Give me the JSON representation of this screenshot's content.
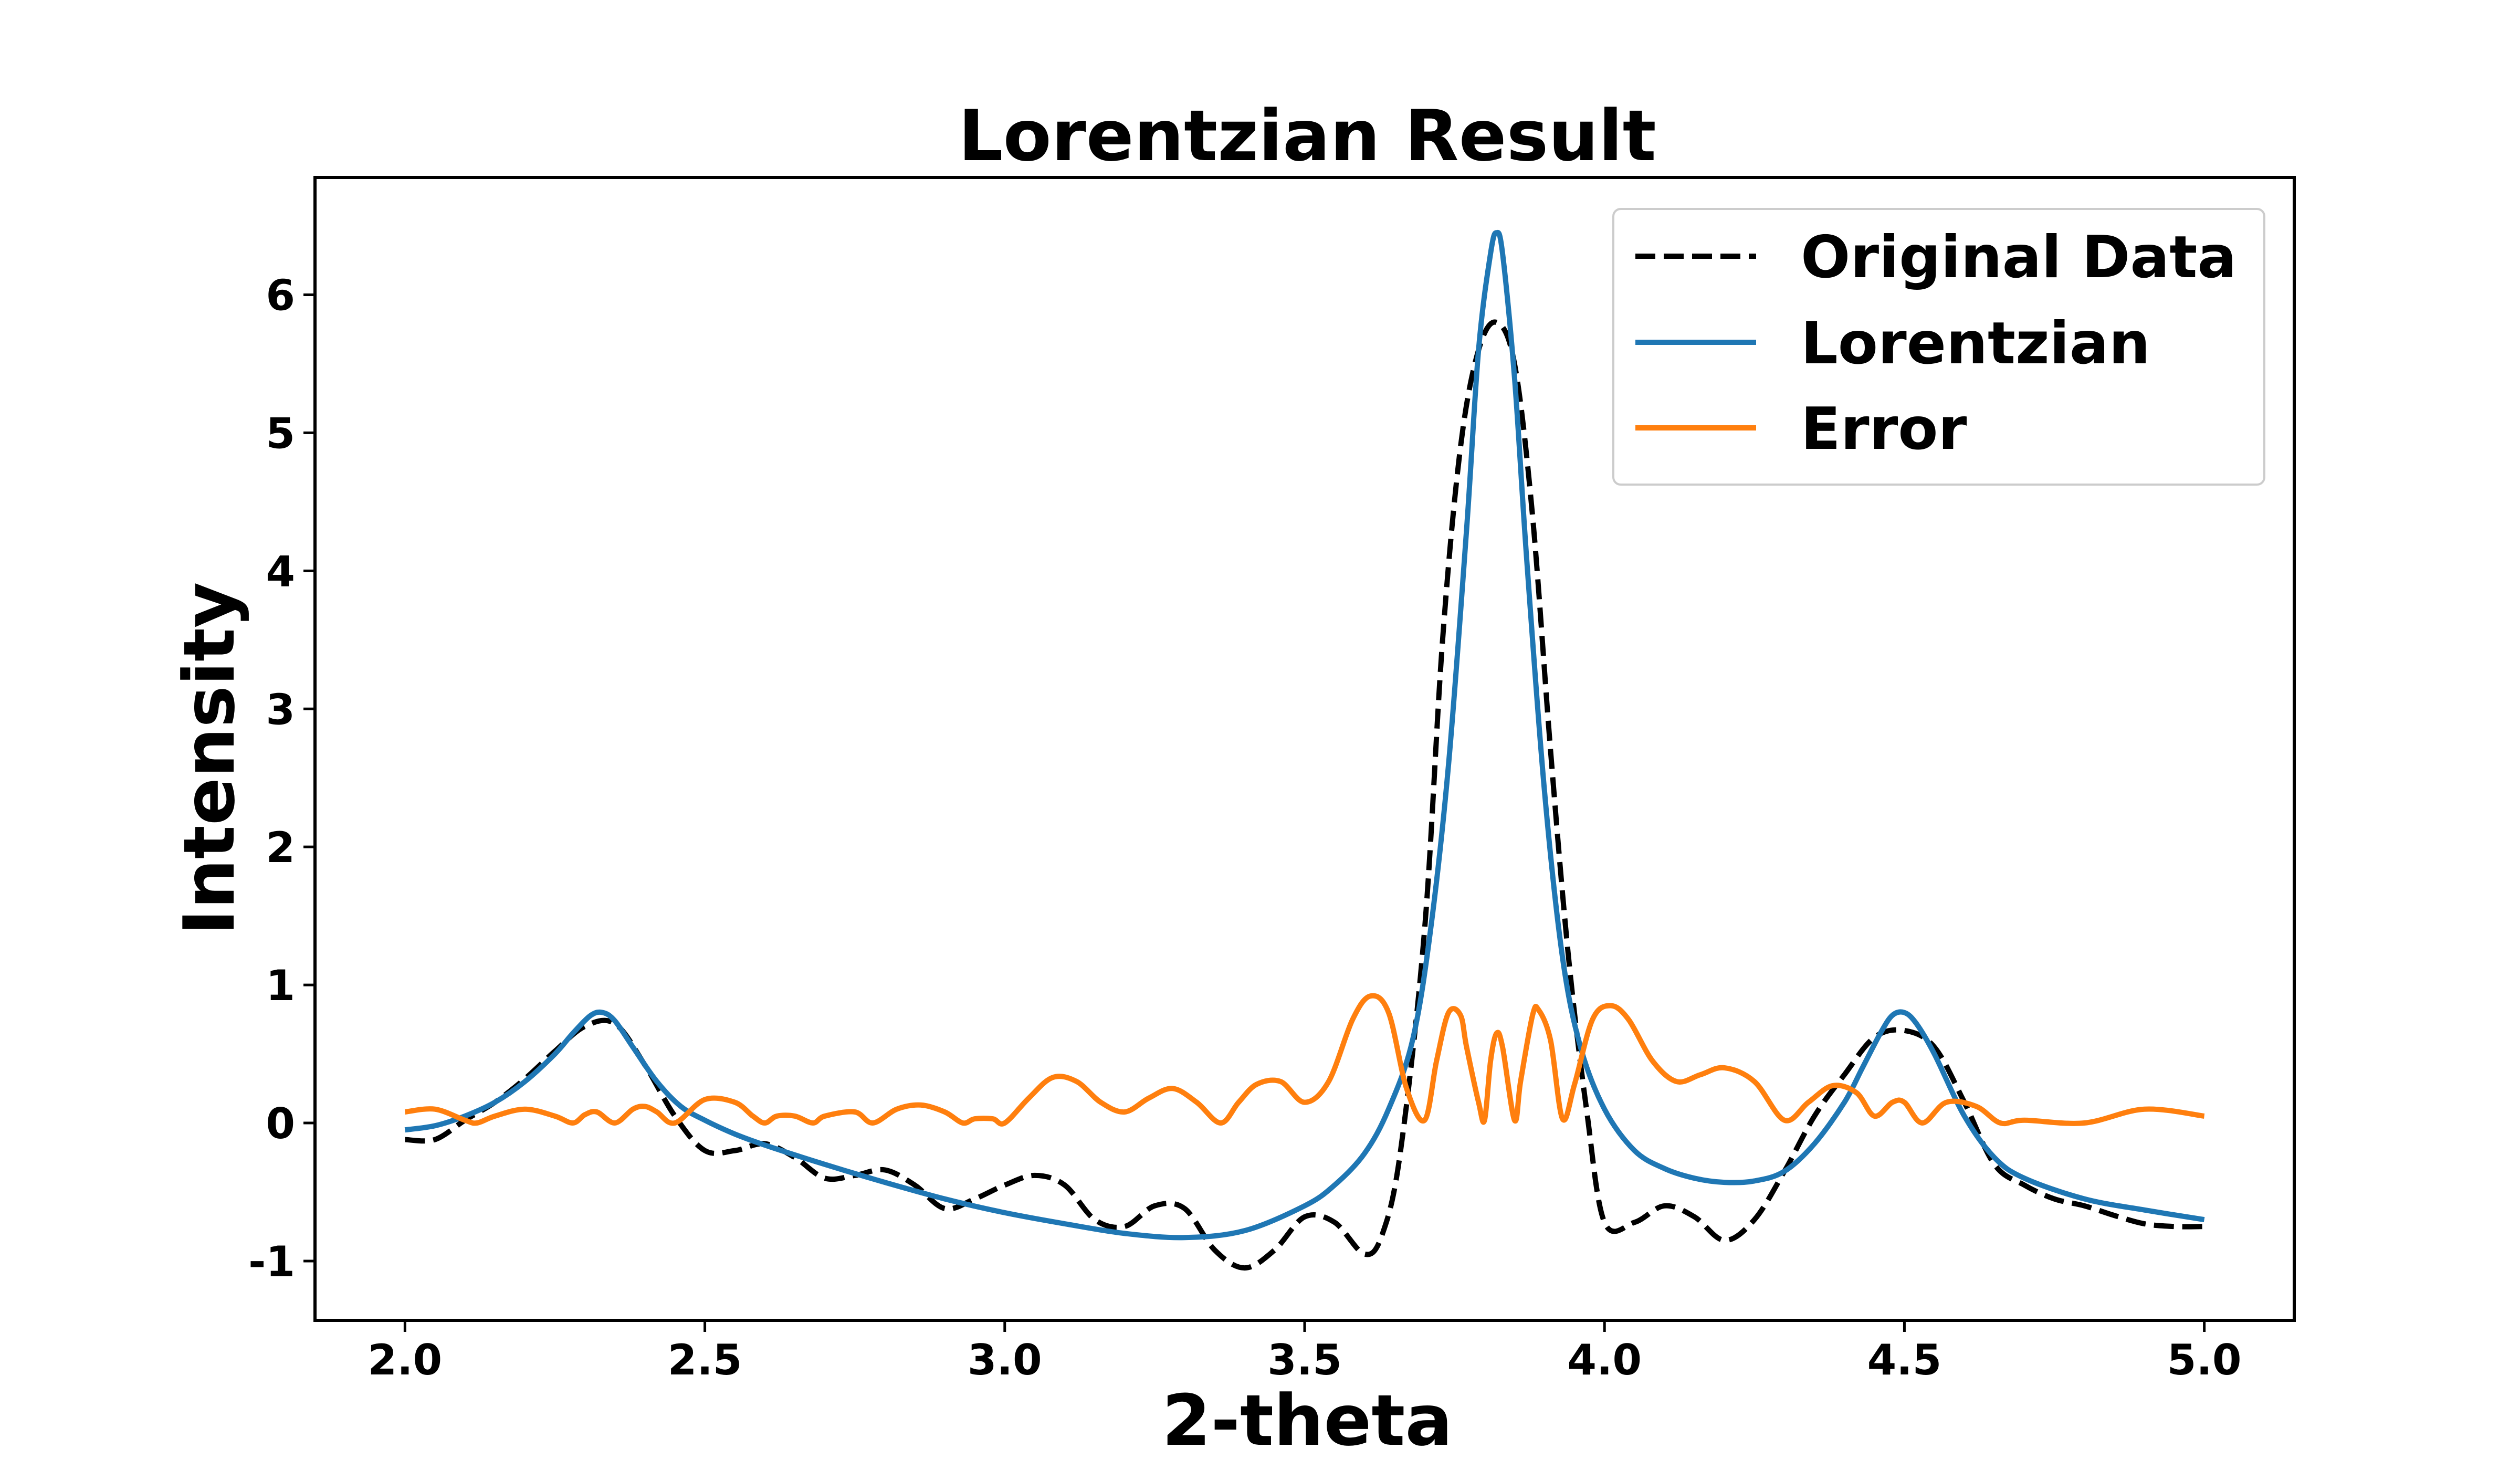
{
  "chart_data": {
    "type": "line",
    "title": "Lorentzian Result",
    "xlabel": "2-theta",
    "ylabel": "Intensity",
    "xlim": [
      1.85,
      5.15
    ],
    "ylim": [
      -1.43,
      6.85
    ],
    "xticks": [
      2.0,
      2.5,
      3.0,
      3.5,
      4.0,
      4.5,
      5.0
    ],
    "xtick_labels": [
      "2.0",
      "2.5",
      "3.0",
      "3.5",
      "4.0",
      "4.5",
      "5.0"
    ],
    "yticks": [
      -1,
      0,
      1,
      2,
      3,
      4,
      5,
      6
    ],
    "ytick_labels": [
      "-1",
      "0",
      "1",
      "2",
      "3",
      "4",
      "5",
      "6"
    ],
    "grid": false,
    "legend_position": "top-right",
    "series": [
      {
        "name": "Original Data",
        "color": "#000000",
        "style": "dashed",
        "x": [
          2.0,
          2.05,
          2.1,
          2.15,
          2.2,
          2.25,
          2.3,
          2.35,
          2.4,
          2.45,
          2.5,
          2.55,
          2.6,
          2.65,
          2.7,
          2.75,
          2.8,
          2.85,
          2.9,
          2.95,
          3.0,
          3.05,
          3.1,
          3.15,
          3.2,
          3.25,
          3.3,
          3.35,
          3.4,
          3.45,
          3.5,
          3.55,
          3.6,
          3.63,
          3.66,
          3.7,
          3.73,
          3.76,
          3.79,
          3.82,
          3.85,
          3.88,
          3.91,
          3.94,
          3.97,
          4.0,
          4.05,
          4.1,
          4.15,
          4.2,
          4.25,
          4.3,
          4.35,
          4.4,
          4.45,
          4.5,
          4.55,
          4.6,
          4.65,
          4.7,
          4.75,
          4.8,
          4.85,
          4.9,
          4.95,
          5.0
        ],
        "y": [
          -0.12,
          -0.12,
          0.02,
          0.15,
          0.32,
          0.52,
          0.7,
          0.72,
          0.42,
          0.05,
          -0.2,
          -0.2,
          -0.15,
          -0.25,
          -0.4,
          -0.38,
          -0.34,
          -0.45,
          -0.62,
          -0.55,
          -0.45,
          -0.38,
          -0.45,
          -0.7,
          -0.75,
          -0.6,
          -0.62,
          -0.92,
          -1.05,
          -0.92,
          -0.68,
          -0.72,
          -0.95,
          -0.8,
          -0.2,
          1.4,
          3.5,
          4.9,
          5.6,
          5.8,
          5.5,
          4.4,
          2.7,
          1.2,
          0.1,
          -0.72,
          -0.72,
          -0.6,
          -0.68,
          -0.85,
          -0.7,
          -0.35,
          0.05,
          0.35,
          0.62,
          0.67,
          0.55,
          0.15,
          -0.3,
          -0.45,
          -0.55,
          -0.6,
          -0.67,
          -0.73,
          -0.75,
          -0.75
        ]
      },
      {
        "name": "Lorentzian",
        "color": "#1f77b4",
        "style": "solid",
        "x": [
          2.0,
          2.05,
          2.1,
          2.15,
          2.2,
          2.25,
          2.28,
          2.31,
          2.33,
          2.35,
          2.38,
          2.42,
          2.46,
          2.5,
          2.55,
          2.6,
          2.7,
          2.8,
          2.9,
          3.0,
          3.1,
          3.2,
          3.3,
          3.4,
          3.5,
          3.55,
          3.6,
          3.64,
          3.68,
          3.71,
          3.74,
          3.77,
          3.79,
          3.81,
          3.82,
          3.83,
          3.85,
          3.87,
          3.9,
          3.93,
          3.96,
          4.0,
          4.05,
          4.1,
          4.15,
          4.2,
          4.25,
          4.3,
          4.35,
          4.4,
          4.43,
          4.46,
          4.48,
          4.5,
          4.52,
          4.55,
          4.6,
          4.65,
          4.7,
          4.8,
          4.9,
          5.0
        ],
        "y": [
          -0.05,
          -0.02,
          0.05,
          0.15,
          0.3,
          0.5,
          0.65,
          0.78,
          0.8,
          0.74,
          0.55,
          0.3,
          0.12,
          0.02,
          -0.08,
          -0.16,
          -0.3,
          -0.43,
          -0.55,
          -0.65,
          -0.73,
          -0.8,
          -0.83,
          -0.78,
          -0.6,
          -0.45,
          -0.22,
          0.1,
          0.6,
          1.4,
          2.6,
          4.3,
          5.6,
          6.3,
          6.45,
          6.3,
          5.4,
          4.1,
          2.4,
          1.2,
          0.55,
          0.1,
          -0.2,
          -0.33,
          -0.4,
          -0.43,
          -0.42,
          -0.35,
          -0.15,
          0.15,
          0.4,
          0.65,
          0.78,
          0.8,
          0.72,
          0.5,
          0.05,
          -0.25,
          -0.4,
          -0.55,
          -0.63,
          -0.7
        ]
      },
      {
        "name": "Error",
        "color": "#ff7f0e",
        "style": "solid",
        "x": [
          2.0,
          2.05,
          2.1,
          2.12,
          2.15,
          2.2,
          2.25,
          2.28,
          2.3,
          2.32,
          2.35,
          2.38,
          2.4,
          2.42,
          2.45,
          2.5,
          2.55,
          2.58,
          2.6,
          2.62,
          2.65,
          2.68,
          2.7,
          2.75,
          2.78,
          2.82,
          2.86,
          2.9,
          2.93,
          2.95,
          2.98,
          3.0,
          3.04,
          3.08,
          3.12,
          3.16,
          3.2,
          3.24,
          3.28,
          3.32,
          3.36,
          3.39,
          3.42,
          3.46,
          3.5,
          3.54,
          3.58,
          3.61,
          3.64,
          3.67,
          3.7,
          3.72,
          3.74,
          3.76,
          3.77,
          3.79,
          3.8,
          3.81,
          3.82,
          3.83,
          3.85,
          3.86,
          3.88,
          3.89,
          3.91,
          3.93,
          3.95,
          3.98,
          4.01,
          4.04,
          4.08,
          4.12,
          4.16,
          4.2,
          4.25,
          4.3,
          4.34,
          4.38,
          4.42,
          4.45,
          4.48,
          4.5,
          4.53,
          4.57,
          4.62,
          4.66,
          4.7,
          4.8,
          4.9,
          5.0
        ],
        "y": [
          0.08,
          0.1,
          0.02,
          0.0,
          0.05,
          0.1,
          0.05,
          0.0,
          0.06,
          0.08,
          0.0,
          0.1,
          0.12,
          0.08,
          0.0,
          0.17,
          0.15,
          0.05,
          0.0,
          0.05,
          0.05,
          0.0,
          0.05,
          0.08,
          0.0,
          0.1,
          0.13,
          0.08,
          0.0,
          0.03,
          0.03,
          0.0,
          0.18,
          0.33,
          0.3,
          0.15,
          0.08,
          0.18,
          0.25,
          0.15,
          0.0,
          0.15,
          0.28,
          0.3,
          0.15,
          0.3,
          0.75,
          0.92,
          0.8,
          0.25,
          0.02,
          0.45,
          0.8,
          0.78,
          0.55,
          0.15,
          0.02,
          0.45,
          0.65,
          0.55,
          0.02,
          0.3,
          0.78,
          0.82,
          0.6,
          0.03,
          0.28,
          0.75,
          0.85,
          0.75,
          0.45,
          0.3,
          0.35,
          0.4,
          0.3,
          0.02,
          0.15,
          0.27,
          0.22,
          0.05,
          0.15,
          0.15,
          0.0,
          0.15,
          0.12,
          0.0,
          0.02,
          0.0,
          0.1,
          0.05
        ]
      }
    ]
  }
}
